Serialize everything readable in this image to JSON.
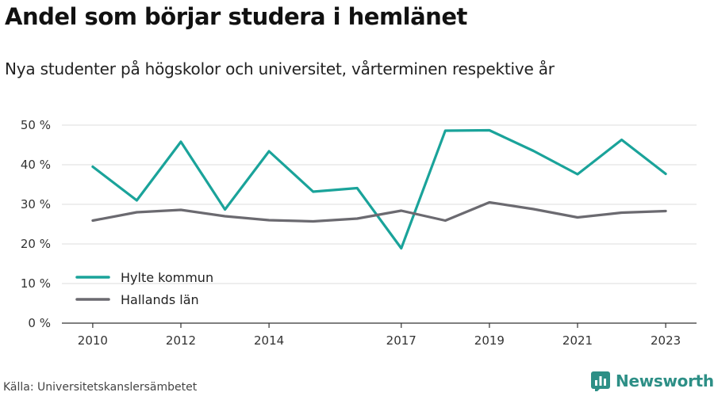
{
  "header": {
    "title": "Andel som börjar studera i hemlänet",
    "subtitle": "Nya studenter på högskolor och universitet, vårterminen respektive år"
  },
  "footer": {
    "source": "Källa: Universitetskanslersämbetet",
    "brand": "Newsworthy",
    "brand_icon": "newsworthy-logo-icon"
  },
  "colors": {
    "hylte": "#1aa39a",
    "halland": "#6b6a70",
    "grid": "#dddddd",
    "axis": "#333333"
  },
  "chart_data": {
    "type": "line",
    "title": "Andel som börjar studera i hemlänet",
    "subtitle": "Nya studenter på högskolor och universitet, vårterminen respektive år",
    "x": [
      2010,
      2011,
      2012,
      2013,
      2014,
      2015,
      2016,
      2017,
      2018,
      2019,
      2020,
      2021,
      2022,
      2023
    ],
    "x_tick_labels": [
      "2010",
      "2012",
      "2014",
      "2017",
      "2019",
      "2021",
      "2023"
    ],
    "x_tick_values": [
      2010,
      2012,
      2014,
      2017,
      2019,
      2021,
      2023
    ],
    "y_tick_labels": [
      "0 %",
      "10 %",
      "20 %",
      "30 %",
      "40 %",
      "50 %"
    ],
    "y_tick_values": [
      0,
      10,
      20,
      30,
      40,
      50
    ],
    "xlim": [
      2009.3,
      2023.7
    ],
    "ylim": [
      0,
      50
    ],
    "grid": true,
    "legend_position": "bottom-left",
    "series": [
      {
        "name": "Hylte kommun",
        "color": "#1aa39a",
        "values": [
          39.5,
          31,
          45.8,
          28.7,
          43.4,
          33.2,
          34.1,
          18.9,
          48.6,
          48.7,
          43.5,
          37.6,
          46.3,
          37.7
        ]
      },
      {
        "name": "Hallands län",
        "color": "#6b6a70",
        "values": [
          25.9,
          28,
          28.6,
          27,
          26,
          25.7,
          26.4,
          28.4,
          25.9,
          30.5,
          28.8,
          26.7,
          27.9,
          28.3
        ]
      }
    ],
    "xlabel": "",
    "ylabel": ""
  }
}
